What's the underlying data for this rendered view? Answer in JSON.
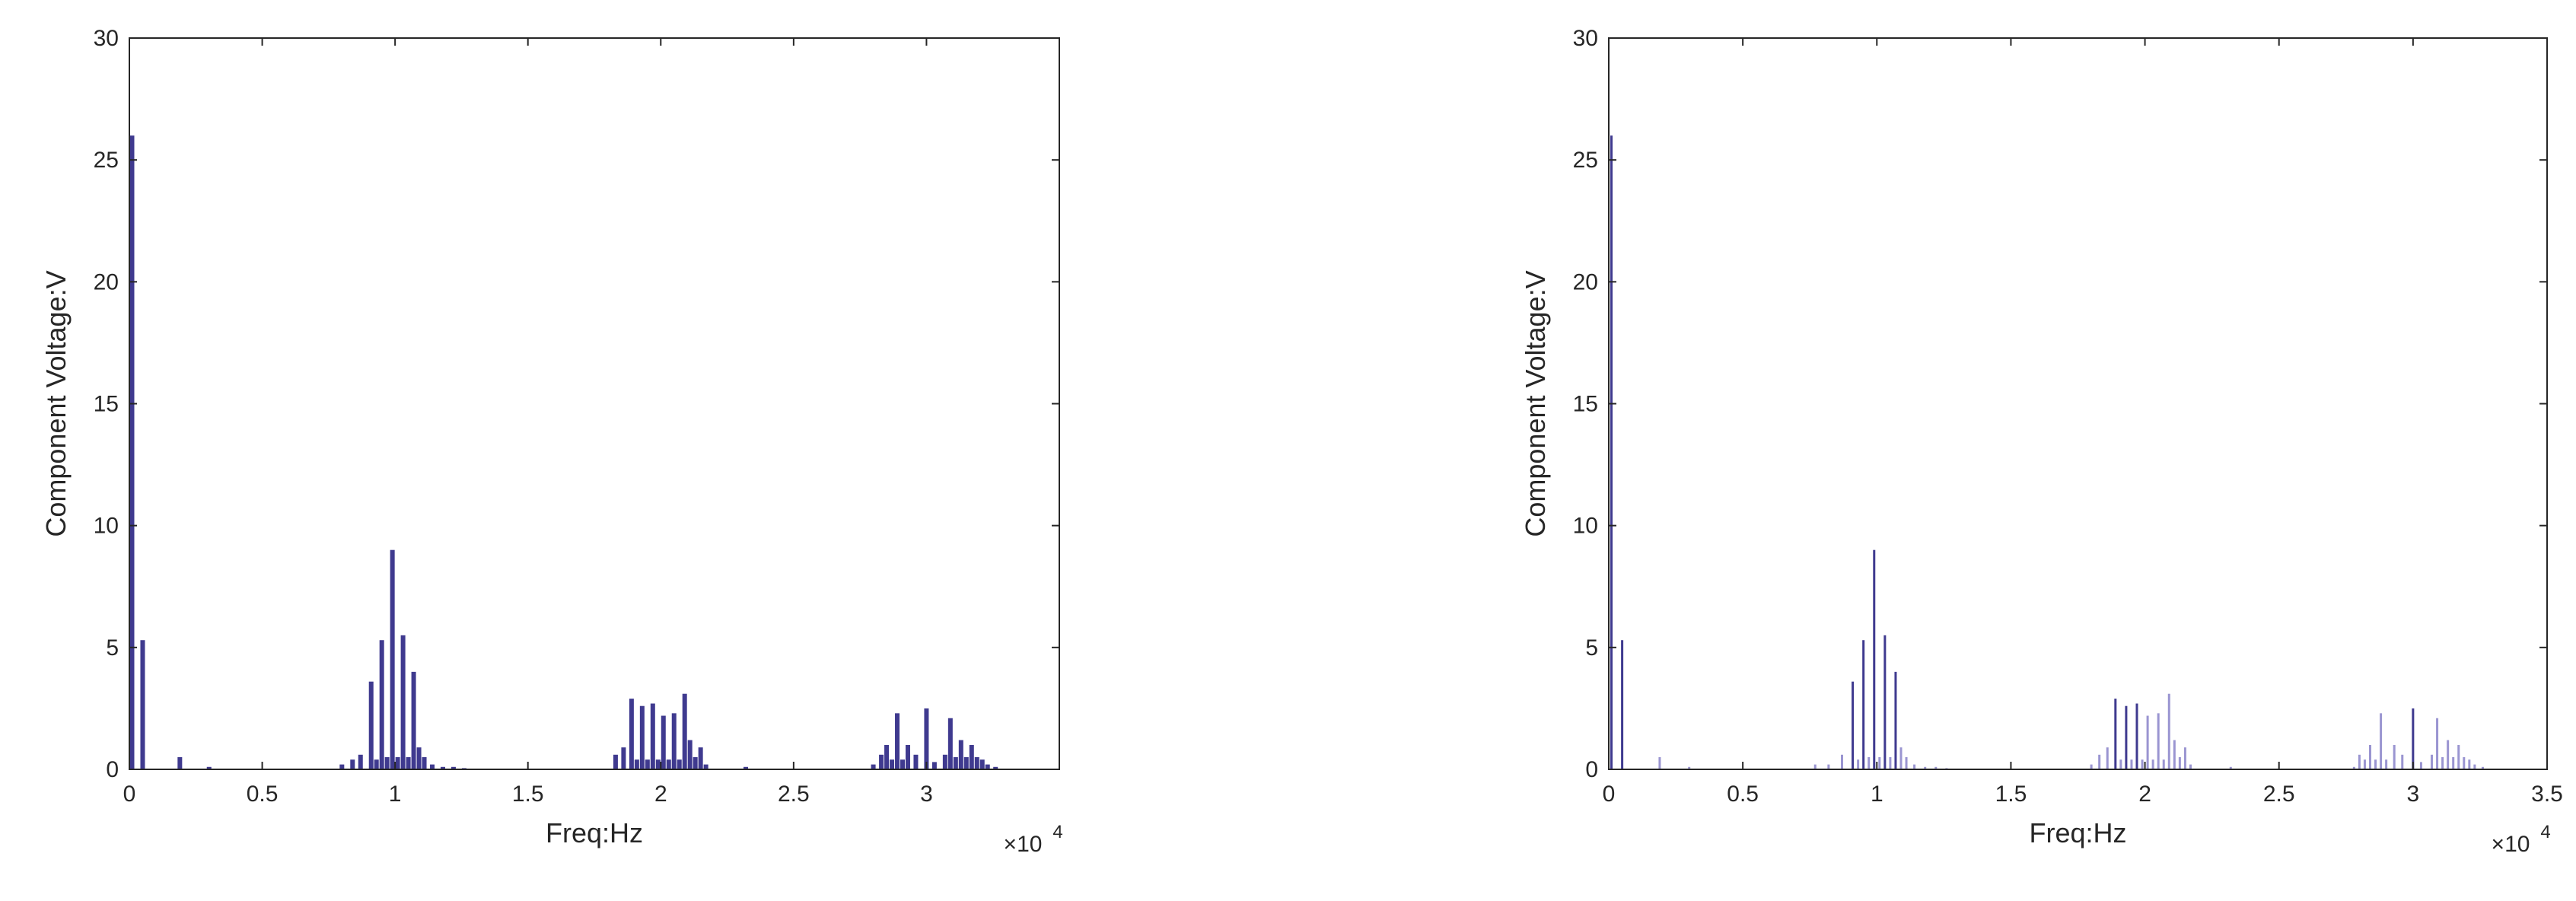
{
  "colors": {
    "bars": "#3f3a8f",
    "stems_light": "#9a95d1",
    "axis": "#262626"
  },
  "chart_data": [
    {
      "type": "bar",
      "xlabel": "Freq:Hz",
      "ylabel": "Component Voltage:V",
      "x_exponent": "×10",
      "x_exponent_power": "4",
      "xlim": [
        0,
        35000
      ],
      "ylim": [
        0,
        30
      ],
      "xticks": [
        "0",
        "0.5",
        "1",
        "1.5",
        "2",
        "2.5",
        "3"
      ],
      "xtick_values": [
        0,
        5000,
        10000,
        15000,
        20000,
        25000,
        30000
      ],
      "yticks": [
        "0",
        "5",
        "10",
        "15",
        "20",
        "25",
        "30"
      ],
      "ytick_values": [
        0,
        5,
        10,
        15,
        20,
        25,
        30
      ],
      "grid": false,
      "x": [
        100,
        500,
        1900,
        3000,
        8000,
        8400,
        8700,
        9100,
        9300,
        9500,
        9700,
        9900,
        10100,
        10300,
        10500,
        10700,
        10900,
        11100,
        11400,
        11800,
        12200,
        12600,
        18300,
        18600,
        18900,
        19100,
        19300,
        19500,
        19700,
        19900,
        20100,
        20300,
        20500,
        20700,
        20900,
        21100,
        21300,
        21500,
        21700,
        23200,
        28000,
        28300,
        28500,
        28700,
        28900,
        29100,
        29300,
        29600,
        30000,
        30300,
        30700,
        30900,
        31100,
        31300,
        31500,
        31700,
        31900,
        32100,
        32300,
        32600
      ],
      "values": [
        26,
        5.3,
        0.5,
        0.1,
        0.2,
        0.4,
        0.6,
        3.6,
        0.4,
        5.3,
        0.5,
        9.0,
        0.5,
        5.5,
        0.5,
        4.0,
        0.9,
        0.5,
        0.2,
        0.1,
        0.1,
        0.05,
        0.6,
        0.9,
        2.9,
        0.4,
        2.6,
        0.4,
        2.7,
        0.4,
        2.2,
        0.4,
        2.3,
        0.4,
        3.1,
        1.2,
        0.5,
        0.9,
        0.2,
        0.1,
        0.2,
        0.6,
        1.0,
        0.4,
        2.3,
        0.4,
        1.0,
        0.6,
        2.5,
        0.3,
        0.6,
        2.1,
        0.5,
        1.2,
        0.5,
        1.0,
        0.5,
        0.4,
        0.2,
        0.1
      ]
    },
    {
      "type": "bar",
      "xlabel": "Freq:Hz",
      "ylabel": "Component Voltage:V",
      "x_exponent": "×10",
      "x_exponent_power": "4",
      "xlim": [
        0,
        35000
      ],
      "ylim": [
        0,
        30
      ],
      "xticks": [
        "0",
        "0.5",
        "1",
        "1.5",
        "2",
        "2.5",
        "3",
        "3.5"
      ],
      "xtick_values": [
        0,
        5000,
        10000,
        15000,
        20000,
        25000,
        30000,
        35000
      ],
      "yticks": [
        "0",
        "5",
        "10",
        "15",
        "20",
        "25",
        "30"
      ],
      "ytick_values": [
        0,
        5,
        10,
        15,
        20,
        25,
        30
      ],
      "grid": false,
      "x": [
        100,
        500,
        1900,
        3000,
        7700,
        8200,
        8700,
        9100,
        9300,
        9500,
        9700,
        9900,
        10100,
        10300,
        10500,
        10700,
        10900,
        11100,
        11400,
        11800,
        12200,
        12600,
        18000,
        18300,
        18600,
        18900,
        19100,
        19300,
        19500,
        19700,
        19900,
        20100,
        20300,
        20500,
        20700,
        20900,
        21100,
        21300,
        21500,
        21700,
        23200,
        27800,
        28000,
        28200,
        28400,
        28600,
        28800,
        29000,
        29300,
        29600,
        30000,
        30300,
        30700,
        30900,
        31100,
        31300,
        31500,
        31700,
        31900,
        32100,
        32300,
        32600
      ],
      "values": [
        26,
        5.3,
        0.5,
        0.1,
        0.2,
        0.2,
        0.6,
        3.6,
        0.4,
        5.3,
        0.5,
        9.0,
        0.5,
        5.5,
        0.5,
        4.0,
        0.9,
        0.5,
        0.2,
        0.1,
        0.1,
        0.05,
        0.2,
        0.6,
        0.9,
        2.9,
        0.4,
        2.6,
        0.4,
        2.7,
        0.4,
        2.2,
        0.4,
        2.3,
        0.4,
        3.1,
        1.2,
        0.5,
        0.9,
        0.2,
        0.1,
        0.1,
        0.6,
        0.4,
        1.0,
        0.4,
        2.3,
        0.4,
        1.0,
        0.6,
        2.5,
        0.3,
        0.6,
        2.1,
        0.5,
        1.2,
        0.5,
        1.0,
        0.5,
        0.4,
        0.2,
        0.1
      ]
    }
  ]
}
